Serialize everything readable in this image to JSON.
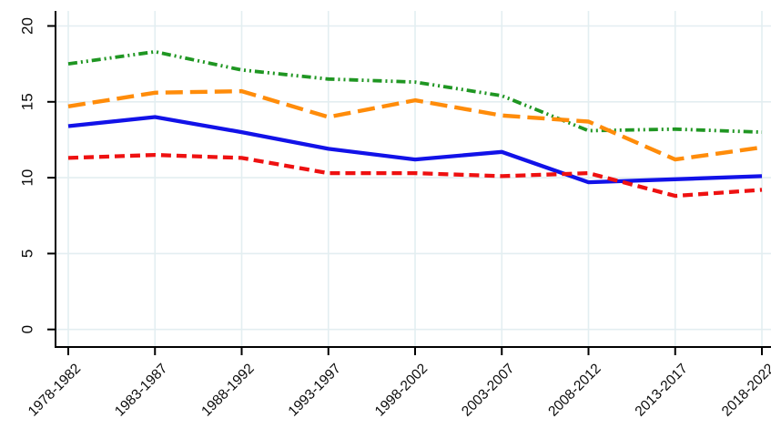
{
  "chart_data": {
    "type": "line",
    "title": "",
    "xlabel": "",
    "ylabel": "",
    "categories": [
      "1978-1982",
      "1983-1987",
      "1988-1992",
      "1993-1997",
      "1998-2002",
      "2003-2007",
      "2008-2012",
      "2013-2017",
      "2018-2022"
    ],
    "series": [
      {
        "name": "green-dash-dot-dot",
        "color": "#1f9622",
        "dash": "10 4 2 4 2 4",
        "width": 3.8,
        "values": [
          17.5,
          18.3,
          17.1,
          16.5,
          16.3,
          15.4,
          13.1,
          13.2,
          13.0
        ]
      },
      {
        "name": "orange-long-dash",
        "color": "#ff8c0a",
        "dash": "19 8",
        "width": 4.4,
        "values": [
          14.7,
          15.6,
          15.7,
          14.0,
          15.1,
          14.1,
          13.7,
          11.2,
          12.0
        ]
      },
      {
        "name": "blue-solid",
        "color": "#1212e8",
        "dash": "",
        "width": 4.3,
        "values": [
          13.4,
          14.0,
          13.0,
          11.9,
          11.2,
          11.7,
          9.7,
          9.9,
          10.1
        ]
      },
      {
        "name": "red-short-dash",
        "color": "#ee1111",
        "dash": "11 6",
        "width": 4.3,
        "values": [
          11.3,
          11.5,
          11.3,
          10.3,
          10.3,
          10.1,
          10.3,
          8.8,
          9.2
        ]
      }
    ],
    "y_ticks": [
      0,
      5,
      10,
      15,
      20
    ],
    "ylim": [
      0,
      21
    ],
    "grid": true,
    "legend": "none",
    "x_label_angle_deg": -45,
    "y_label_angle_deg": -90,
    "colors": {
      "grid": "#e3eef1",
      "axis": "#000000",
      "label": "#0a0a0a",
      "background": "#ffffff"
    }
  }
}
